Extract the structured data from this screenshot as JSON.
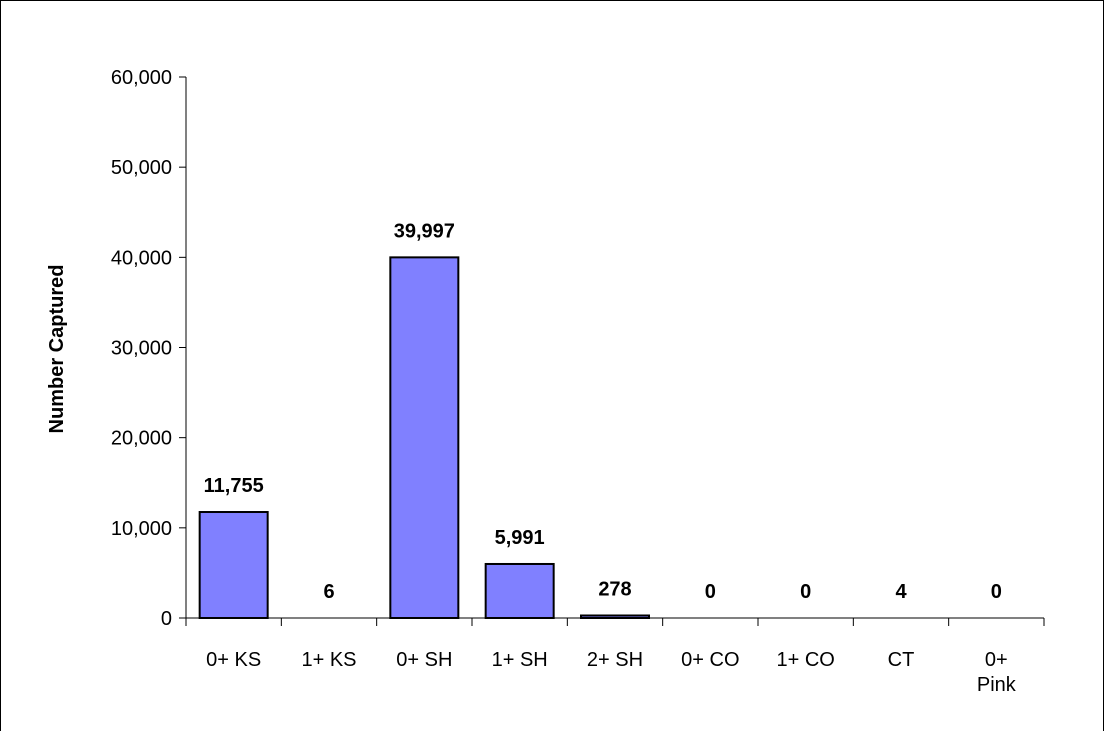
{
  "chart_data": {
    "type": "bar",
    "title": "",
    "xlabel": "",
    "ylabel": "Number Captured",
    "ylim": [
      0,
      60000
    ],
    "yticks": [
      0,
      10000,
      20000,
      30000,
      40000,
      50000,
      60000
    ],
    "ytick_labels": [
      "0",
      "10,000",
      "20,000",
      "30,000",
      "40,000",
      "50,000",
      "60,000"
    ],
    "categories": [
      [
        "0+ KS"
      ],
      [
        "1+ KS"
      ],
      [
        "0+ SH"
      ],
      [
        "1+ SH"
      ],
      [
        "2+ SH"
      ],
      [
        "0+ CO"
      ],
      [
        "1+ CO"
      ],
      [
        "CT"
      ],
      [
        "0+",
        "Pink"
      ]
    ],
    "values": [
      11755,
      6,
      39997,
      5991,
      278,
      0,
      0,
      4,
      0
    ],
    "data_labels": [
      "11,755",
      "6",
      "39,997",
      "5,991",
      "278",
      "0",
      "0",
      "4",
      "0"
    ],
    "grid": false,
    "legend": "none",
    "bar_color": "#8080ff",
    "bar_edge_color": "#000000"
  }
}
